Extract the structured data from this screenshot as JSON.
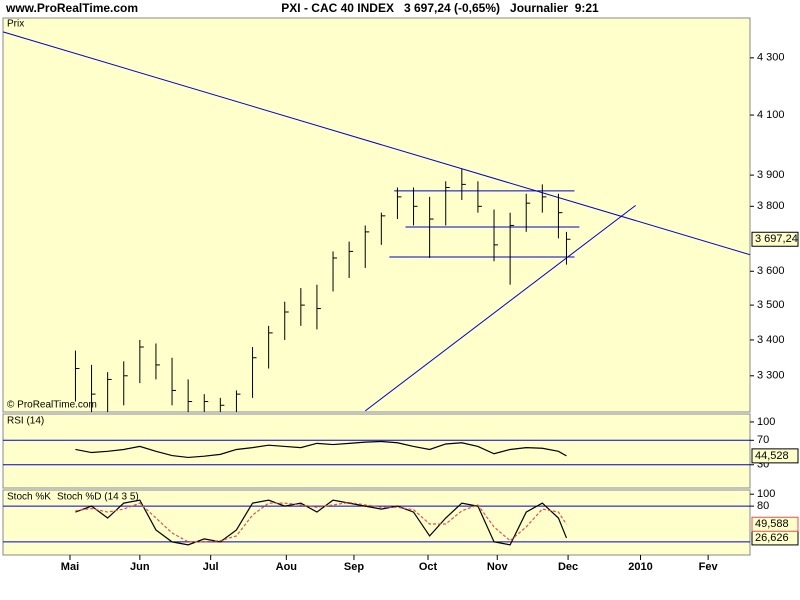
{
  "site": "www.ProRealTime.com",
  "title": "PXI - CAC 40 INDEX   3 697,24 (-0,65%)   Journalier  9:21",
  "copyright": "© ProRealTime.com",
  "chart_data": [
    {
      "type": "ohlc",
      "label": "Prix",
      "log_scale": true,
      "x": [
        4.5,
        5.5,
        6.5,
        7.5,
        8.5,
        9.5,
        10.5,
        11.5,
        12.5,
        13.5,
        14.5,
        15.5,
        16.5,
        17.5,
        18.5,
        19.5,
        20.5,
        21.5,
        22.5,
        23.5,
        24.5,
        25.5,
        26.5,
        27.5,
        28.5,
        29.5,
        30.5,
        31.5,
        32.5,
        33.5,
        34.5,
        35.0
      ],
      "high": [
        3370,
        3330,
        3310,
        3340,
        3400,
        3390,
        3350,
        3290,
        3250,
        3240,
        3260,
        3380,
        3440,
        3510,
        3550,
        3560,
        3660,
        3690,
        3740,
        3780,
        3860,
        3860,
        3830,
        3880,
        3920,
        3880,
        3790,
        3780,
        3840,
        3870,
        3840,
        3720
      ],
      "low": [
        3230,
        3200,
        3200,
        3220,
        3280,
        3290,
        3220,
        3200,
        3200,
        3200,
        3200,
        3240,
        3320,
        3400,
        3440,
        3430,
        3540,
        3580,
        3610,
        3680,
        3760,
        3740,
        3640,
        3740,
        3820,
        3780,
        3630,
        3560,
        3720,
        3780,
        3700,
        3620
      ],
      "close": [
        3320,
        3250,
        3290,
        3300,
        3380,
        3330,
        3260,
        3230,
        3230,
        3220,
        3250,
        3350,
        3420,
        3480,
        3500,
        3490,
        3640,
        3660,
        3720,
        3770,
        3830,
        3800,
        3760,
        3860,
        3870,
        3800,
        3680,
        3740,
        3810,
        3830,
        3780,
        3697.24
      ],
      "color": "#000000",
      "last_value": {
        "value": 3697.24,
        "label": "3 697,24"
      },
      "xlim": [
        0,
        46.4
      ],
      "ylim": [
        3202,
        4445
      ],
      "yticks": [
        {
          "value": 4300,
          "label": "4 300"
        },
        {
          "value": 4100,
          "label": "4 100"
        },
        {
          "value": 3900,
          "label": "3 900"
        },
        {
          "value": 3800,
          "label": "3 800"
        },
        {
          "value": 3600,
          "label": "3 600"
        },
        {
          "value": 3500,
          "label": "3 500"
        },
        {
          "value": 3400,
          "label": "3 400"
        },
        {
          "value": 3300,
          "label": "3 300"
        }
      ],
      "trendlines": [
        [
          0,
          4394,
          46.4,
          3650
        ],
        [
          22.5,
          3205,
          39.3,
          3803
        ],
        [
          24.3,
          3849,
          35.5,
          3849
        ],
        [
          25.0,
          3735,
          35.8,
          3735
        ],
        [
          24.0,
          3643,
          35.5,
          3643
        ]
      ],
      "trendline_color": "#0000cc"
    },
    {
      "type": "line",
      "label": "RSI (14)",
      "x": [
        4.5,
        5.5,
        6.5,
        7.5,
        8.5,
        9.5,
        10.5,
        11.5,
        12.5,
        13.5,
        14.5,
        15.5,
        16.5,
        17.5,
        18.5,
        19.5,
        20.5,
        21.5,
        22.5,
        23.5,
        24.5,
        25.5,
        26.5,
        27.5,
        28.5,
        29.5,
        30.5,
        31.5,
        32.5,
        33.5,
        34.5,
        35.0
      ],
      "series": [
        {
          "name": "RSI (14)",
          "color": "#000000",
          "values": [
            55,
            50,
            52,
            55,
            60,
            52,
            45,
            42,
            44,
            47,
            55,
            58,
            62,
            60,
            58,
            65,
            63,
            65,
            67,
            68,
            66,
            60,
            55,
            64,
            66,
            60,
            48,
            55,
            58,
            57,
            52,
            44.528
          ]
        }
      ],
      "last_value": {
        "value": 44.528,
        "label": "44,528"
      },
      "xlim": [
        0,
        46.4
      ],
      "ylim": [
        -8,
        113
      ],
      "yticks": [
        100,
        70,
        30
      ],
      "levels": [
        70,
        30
      ],
      "level_color": "#0000cc"
    },
    {
      "type": "line",
      "x": [
        4.5,
        5.5,
        6.5,
        7.5,
        8.5,
        9.5,
        10.5,
        11.5,
        12.5,
        13.5,
        14.5,
        15.5,
        16.5,
        17.5,
        18.5,
        19.5,
        20.5,
        21.5,
        22.5,
        23.5,
        24.5,
        25.5,
        26.5,
        27.5,
        28.5,
        29.5,
        30.5,
        31.5,
        32.5,
        33.5,
        34.5,
        35.0
      ],
      "series": [
        {
          "name": "Stoch %K",
          "color": "#000000",
          "values": [
            70,
            80,
            60,
            85,
            90,
            40,
            20,
            15,
            25,
            20,
            40,
            85,
            90,
            80,
            85,
            70,
            90,
            85,
            80,
            75,
            80,
            70,
            30,
            60,
            85,
            80,
            20,
            15,
            70,
            85,
            60,
            26.626
          ]
        },
        {
          "name": "Stoch %D (14 3 5)",
          "color": "#e05050",
          "values": [
            72,
            76,
            70,
            75,
            85,
            60,
            35,
            20,
            20,
            22,
            30,
            65,
            85,
            85,
            82,
            78,
            82,
            86,
            82,
            78,
            78,
            74,
            50,
            50,
            72,
            82,
            45,
            22,
            45,
            75,
            70,
            49.588
          ]
        }
      ],
      "last_values": [
        {
          "value": 26.626,
          "label": "26,626"
        },
        {
          "value": 49.588,
          "label": "49,588"
        }
      ],
      "xlim": [
        0,
        46.4
      ],
      "ylim": [
        -2,
        107
      ],
      "yticks": [
        100,
        80
      ],
      "levels": [
        80,
        20
      ],
      "level_color": "#0000cc",
      "xticks": [
        {
          "value": 4.16,
          "label": "Mai"
        },
        {
          "value": 8.5,
          "label": "Jun"
        },
        {
          "value": 12.9,
          "label": "Jul"
        },
        {
          "value": 17.6,
          "label": "Aou"
        },
        {
          "value": 21.8,
          "label": "Sep"
        },
        {
          "value": 26.4,
          "label": "Oct"
        },
        {
          "value": 30.7,
          "label": "Nov"
        },
        {
          "value": 35.1,
          "label": "Dec"
        },
        {
          "value": 39.6,
          "label": "2010"
        },
        {
          "value": 43.8,
          "label": "Fev"
        }
      ]
    }
  ]
}
